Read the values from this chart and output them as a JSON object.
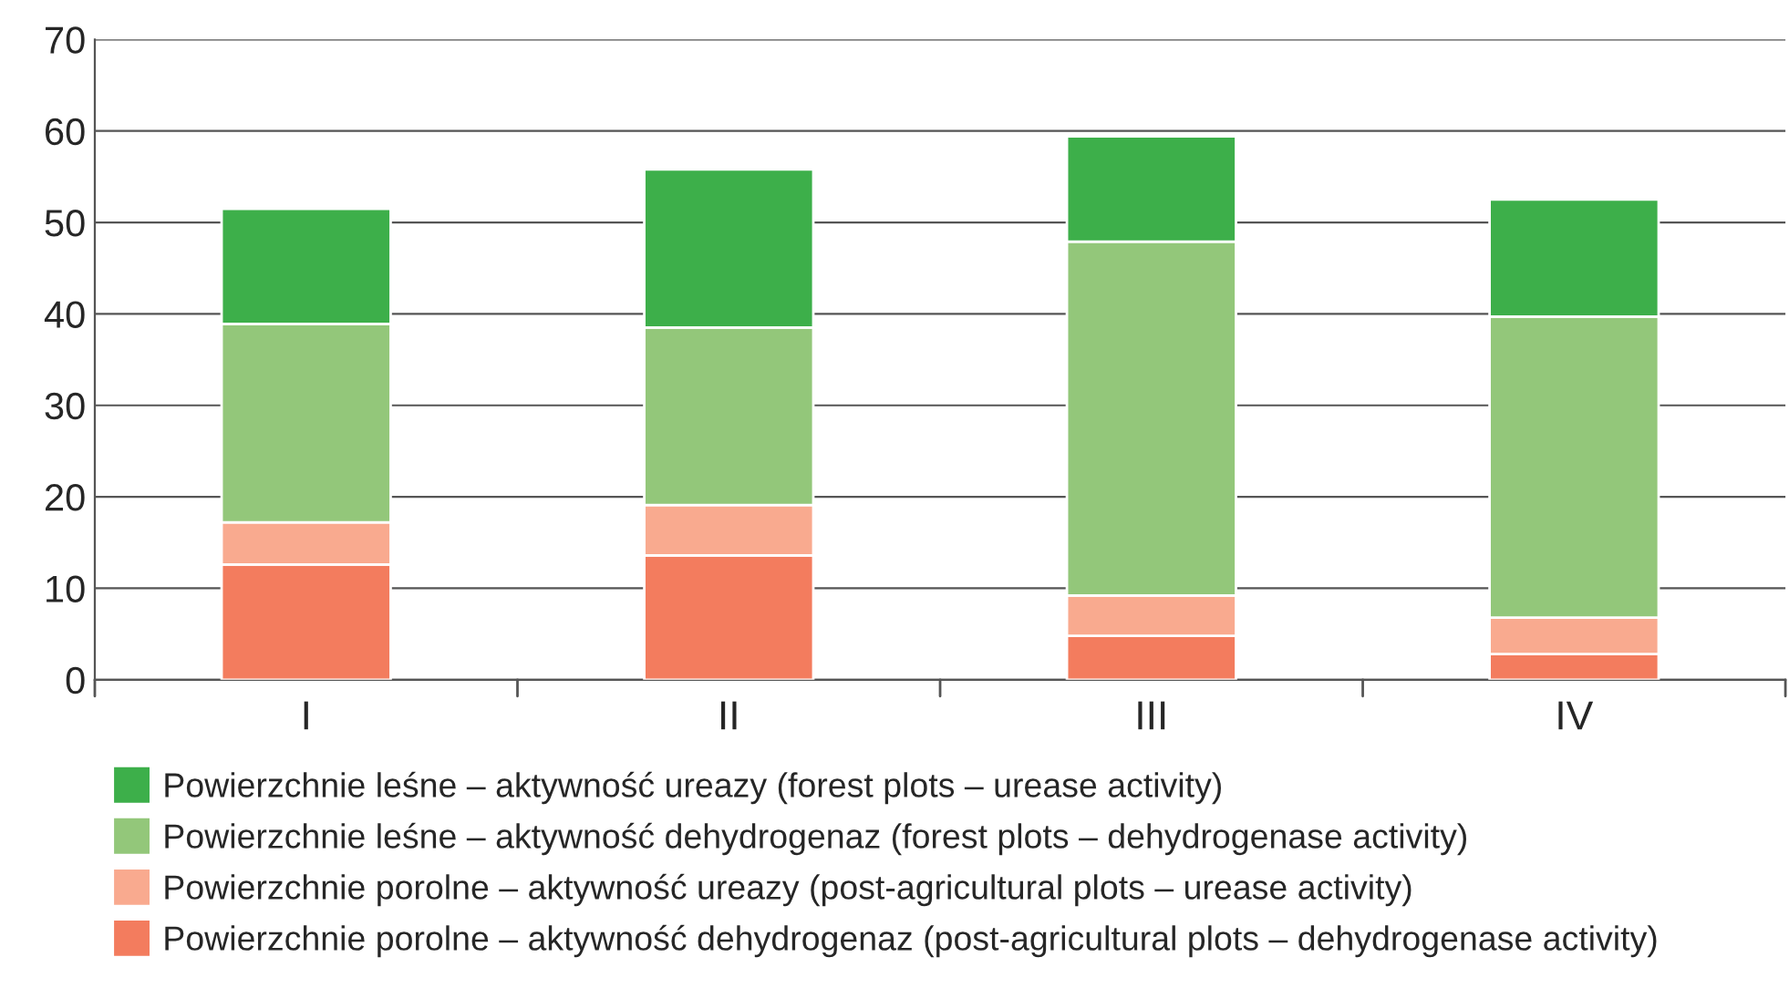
{
  "chart_data": {
    "type": "bar",
    "stacked": true,
    "categories": [
      "I",
      "II",
      "III",
      "IV"
    ],
    "series": [
      {
        "name": "Powierzchnie porolne – aktywność dehydrogenaz (post-agricultural plots – dehydrogenase activity)",
        "color": "#f37c5e",
        "values": [
          12.6,
          13.6,
          4.8,
          2.8
        ]
      },
      {
        "name": "Powierzchnie porolne – aktywność ureazy (post-agricultural plots – urease activity)",
        "color": "#f9aa8f",
        "values": [
          4.6,
          5.5,
          4.4,
          4.0
        ]
      },
      {
        "name": "Powierzchnie leśne – aktywność dehydrogenaz (forest plots – dehydrogenase activity)",
        "color": "#93c77a",
        "values": [
          21.7,
          19.4,
          38.7,
          32.9
        ]
      },
      {
        "name": "Powierzchnie leśne – aktywność ureazy (forest plots – urease activity)",
        "color": "#3daf4a",
        "values": [
          12.6,
          17.3,
          11.5,
          12.8
        ]
      }
    ],
    "ylim": [
      0,
      70
    ],
    "yticks": [
      0,
      10,
      20,
      30,
      40,
      50,
      60,
      70
    ],
    "grid": "y",
    "legend": "bottom"
  }
}
